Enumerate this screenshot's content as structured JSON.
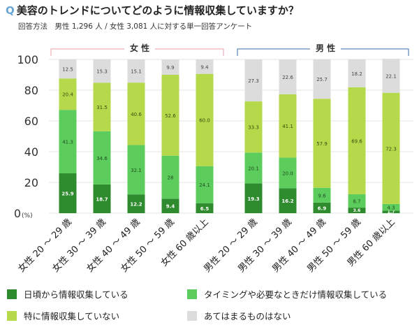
{
  "header": {
    "q_icon": "Q",
    "title": "美容のトレンドについてどのように情報収集していますか？",
    "subtitle": "回答方法　男性 1,296 人 / 女性 3,081 人に対する単一回答アンケート"
  },
  "groups": {
    "female": "女 性",
    "male": "男 性"
  },
  "chart_data": {
    "type": "bar",
    "stacked": true,
    "ylim": [
      0,
      100
    ],
    "yticks": [
      0,
      20,
      40,
      60,
      80,
      100
    ],
    "yunit": "(%)",
    "grid": true,
    "categories": [
      "女性 20 ～ 29 歳",
      "女性 30 ～ 39 歳",
      "女性 40 ～ 49 歳",
      "女性 50 ～ 59 歳",
      "女性 60 歳以上",
      "男性 20 ～ 29 歳",
      "男性 30 ～ 39 歳",
      "男性 40 ～ 49 歳",
      "男性 50 ～ 59 歳",
      "男性 60 歳以上"
    ],
    "series": [
      {
        "name": "日頃から情報収集している",
        "color": "#2e8b2e",
        "label_color": "#ffffff",
        "values": [
          25.9,
          18.7,
          12.2,
          9.4,
          6.5,
          19.3,
          16.2,
          6.9,
          3.6,
          1.7
        ]
      },
      {
        "name": "タイミングや必要なときだけ情報収集している",
        "color": "#5ccc5c",
        "label_color": "#1f4d1f",
        "values": [
          41.3,
          34.6,
          32.1,
          28,
          24.1,
          20.1,
          20.0,
          9.6,
          8.7,
          4.3
        ]
      },
      {
        "name": "特に情報収集していない",
        "color": "#b5d94a",
        "label_color": "#3a4a10",
        "values": [
          20.4,
          31.5,
          40.6,
          52.6,
          60.0,
          33.3,
          41.1,
          57.9,
          69.6,
          72.3
        ]
      },
      {
        "name": "あてはまるものはない",
        "color": "#dcdcdc",
        "label_color": "#444444",
        "values": [
          12.5,
          15.3,
          15.1,
          9.9,
          9.4,
          27.3,
          22.6,
          25.7,
          18.2,
          22.1
        ]
      }
    ],
    "value_labels": [
      [
        "25.9",
        "18.7",
        "12.2",
        "9.4",
        "6.5",
        "19.3",
        "16.2",
        "6.9",
        "3.6",
        "1.7"
      ],
      [
        "41.3",
        "34.6",
        "32.1",
        "28",
        "24.1",
        "20.1",
        "20.0",
        "9.6",
        "8.7",
        "4.3"
      ],
      [
        "20.4",
        "31.5",
        "40.6",
        "52.6",
        "60.0",
        "33.3",
        "41.1",
        "57.9",
        "69.6",
        "72.3"
      ],
      [
        "12.5",
        "15.3",
        "15.1",
        "9.9",
        "9.4",
        "27.3",
        "22.6",
        "25.7",
        "18.2",
        "22.1"
      ]
    ],
    "legend": "bottom"
  }
}
